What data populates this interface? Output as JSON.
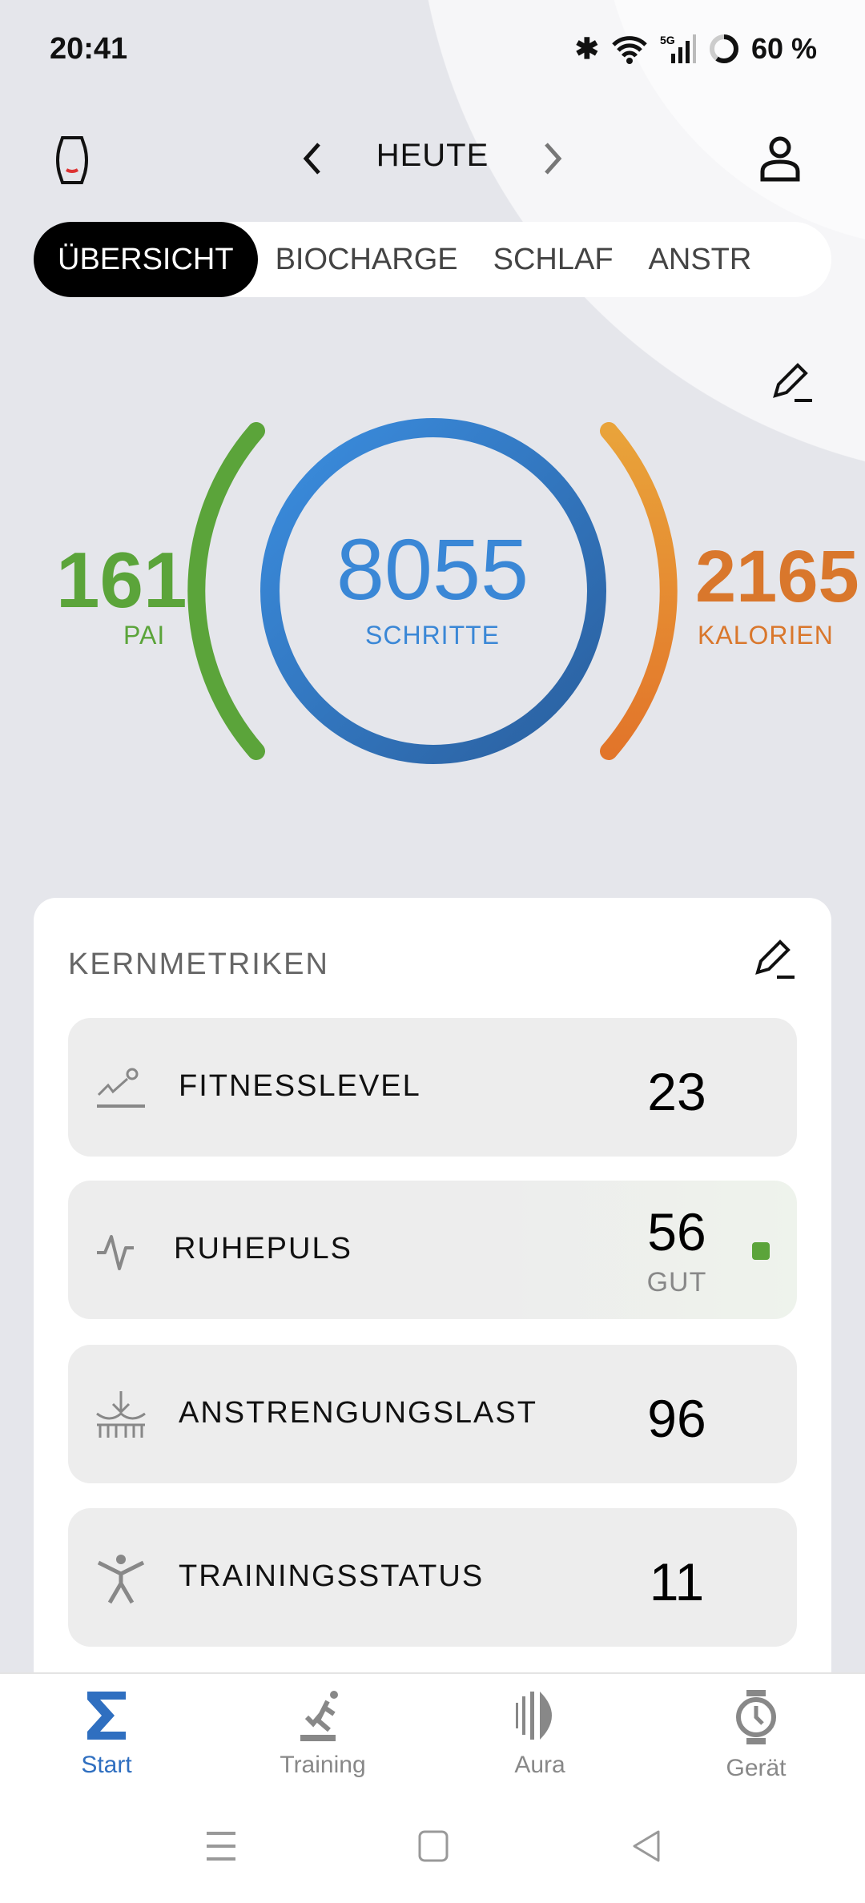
{
  "status": {
    "time": "20:41",
    "battery": "60 %",
    "network": "5G"
  },
  "header": {
    "title": "HEUTE",
    "prev_icon": "chevron-left",
    "next_icon": "chevron-right"
  },
  "tabs": [
    {
      "label": "ÜBERSICHT",
      "active": true
    },
    {
      "label": "BIOCHARGE"
    },
    {
      "label": "SCHLAF"
    },
    {
      "label": "ANSTR"
    }
  ],
  "summary": {
    "pai": {
      "value": "161",
      "label": "PAI",
      "color": "#5ba43a"
    },
    "steps": {
      "value": "8055",
      "label": "SCHRITTE",
      "color": "#3a87d6"
    },
    "calories": {
      "value": "2165",
      "label": "KALORIEN",
      "color": "#e07f2a"
    }
  },
  "core_metrics": {
    "title": "KERNMETRIKEN",
    "items": [
      {
        "label": "FITNESSLEVEL",
        "value": "23",
        "icon": "trend-icon"
      },
      {
        "label": "RUHEPULS",
        "value": "56",
        "status": "GUT",
        "status_color": "#5ba43a",
        "icon": "heartbeat-icon"
      },
      {
        "label": "ANSTRENGUNGSLAST",
        "value": "96",
        "icon": "load-icon"
      },
      {
        "label": "TRAININGSSTATUS",
        "value": "11",
        "icon": "person-icon"
      }
    ]
  },
  "bottom_nav": [
    {
      "label": "Start",
      "active": true,
      "color": "#2f6fc0"
    },
    {
      "label": "Training"
    },
    {
      "label": "Aura"
    },
    {
      "label": "Gerät"
    }
  ]
}
